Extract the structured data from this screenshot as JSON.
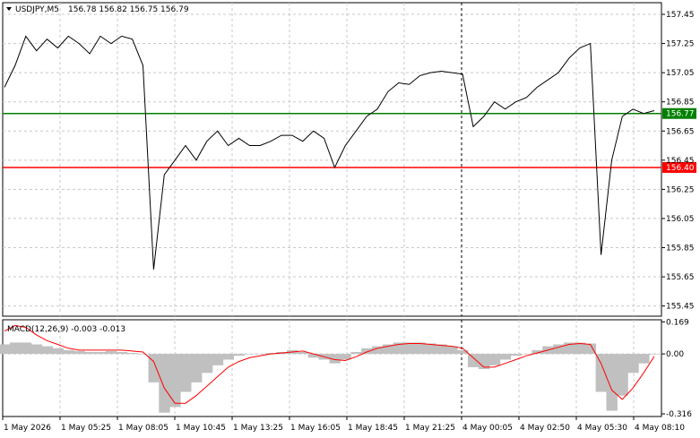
{
  "header": {
    "symbol": "USDJPY,M5",
    "ohlc": "156.78 156.82 156.75 156.79"
  },
  "price_axis": {
    "ticks": [
      "157.45",
      "157.25",
      "157.05",
      "156.85",
      "156.65",
      "156.45",
      "156.25",
      "156.05",
      "155.85",
      "155.65",
      "155.45"
    ],
    "ylim": [
      155.38,
      157.53
    ]
  },
  "levels": [
    {
      "price": 156.77,
      "label": "156.77",
      "color": "#008000"
    },
    {
      "price": 156.4,
      "label": "156.40",
      "color": "#ff0000"
    }
  ],
  "macd": {
    "title": "MACD(12,26,9) -0.003 -0.013",
    "ticks": [
      "0.169",
      "0.00",
      "-0.316"
    ],
    "histogram_color": "#c0c0c0",
    "signal_color": "#ff0000"
  },
  "time_axis": {
    "labels": [
      "1 May 2026",
      "1 May 05:25",
      "1 May 08:05",
      "1 May 10:45",
      "1 May 13:25",
      "1 May 16:05",
      "1 May 18:45",
      "1 May 21:25",
      "4 May 00:05",
      "4 May 02:50",
      "4 May 05:30",
      "4 May 08:10"
    ]
  },
  "chart_data": {
    "type": "line",
    "x_labels": [
      "1 May 2026",
      "1 May 05:25",
      "1 May 08:05",
      "1 May 10:45",
      "1 May 13:25",
      "1 May 16:05",
      "1 May 18:45",
      "1 May 21:25",
      "4 May 00:05",
      "4 May 02:50",
      "4 May 05:30",
      "4 May 08:10"
    ],
    "series": [
      {
        "values": [
          156.95,
          157.1,
          157.3,
          157.2,
          157.28,
          157.22,
          157.3,
          157.25,
          157.18,
          157.3,
          157.25,
          157.3,
          157.28,
          157.1,
          155.7,
          156.35,
          156.45,
          156.55,
          156.45,
          156.58,
          156.65,
          156.55,
          156.6,
          156.55,
          156.55,
          156.58,
          156.62,
          156.62,
          156.58,
          156.65,
          156.6,
          156.4,
          156.55,
          156.65,
          156.75,
          156.8,
          156.92,
          156.98,
          156.97,
          157.03,
          157.05,
          157.06,
          157.05,
          157.04,
          156.68,
          156.75,
          156.85,
          156.8,
          156.85,
          156.88,
          156.95,
          157.0,
          157.05,
          157.15,
          157.22,
          157.25,
          155.8,
          156.45,
          156.75,
          156.8,
          156.77,
          156.79
        ],
        "ylim": [
          155.38,
          157.53
        ]
      }
    ],
    "macd_histogram": [
      0.05,
      0.06,
      0.06,
      0.05,
      0.04,
      0.03,
      0.02,
      0.015,
      0.01,
      0.01,
      0.015,
      0.01,
      0.005,
      0.0,
      -0.15,
      -0.31,
      -0.28,
      -0.2,
      -0.15,
      -0.1,
      -0.06,
      -0.03,
      -0.01,
      0.0,
      0.0,
      0.005,
      0.01,
      0.02,
      0.01,
      -0.02,
      -0.03,
      -0.05,
      -0.03,
      0.01,
      0.03,
      0.04,
      0.05,
      0.06,
      0.06,
      0.06,
      0.055,
      0.05,
      0.04,
      0.02,
      -0.07,
      -0.08,
      -0.06,
      -0.03,
      -0.01,
      0.0,
      0.02,
      0.04,
      0.05,
      0.06,
      0.06,
      0.055,
      -0.2,
      -0.3,
      -0.22,
      -0.1,
      -0.05,
      -0.003
    ],
    "macd_signal": [
      0.12,
      0.15,
      0.14,
      0.1,
      0.07,
      0.05,
      0.03,
      0.02,
      0.02,
      0.02,
      0.02,
      0.02,
      0.015,
      0.01,
      -0.04,
      -0.18,
      -0.26,
      -0.26,
      -0.22,
      -0.17,
      -0.12,
      -0.07,
      -0.04,
      -0.02,
      -0.01,
      0.0,
      0.005,
      0.01,
      0.015,
      0.0,
      -0.015,
      -0.03,
      -0.035,
      -0.015,
      0.01,
      0.03,
      0.04,
      0.05,
      0.055,
      0.055,
      0.05,
      0.045,
      0.04,
      0.03,
      -0.02,
      -0.07,
      -0.07,
      -0.05,
      -0.03,
      -0.01,
      0.005,
      0.02,
      0.035,
      0.05,
      0.055,
      0.05,
      -0.05,
      -0.19,
      -0.24,
      -0.18,
      -0.1,
      -0.013
    ],
    "macd_ylim": [
      -0.33,
      0.18
    ]
  }
}
